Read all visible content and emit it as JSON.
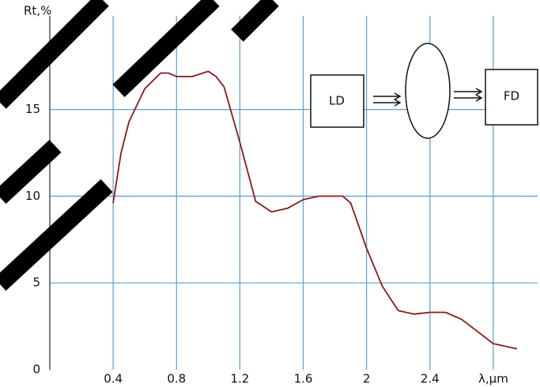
{
  "chart_data": {
    "type": "line",
    "y_label": "Rt,%",
    "annotations": [
      "LD",
      "FD"
    ],
    "x": [
      0.4,
      0.45,
      0.5,
      0.6,
      0.7,
      0.75,
      0.8,
      0.9,
      1.0,
      1.05,
      1.1,
      1.2,
      1.3,
      1.4,
      1.5,
      1.6,
      1.7,
      1.85,
      1.9,
      2.0,
      2.1,
      2.2,
      2.3,
      2.4,
      2.5,
      2.6,
      2.7,
      2.8,
      2.95
    ],
    "values": [
      9.6,
      12.5,
      14.3,
      16.2,
      17.1,
      17.1,
      16.9,
      16.9,
      17.2,
      16.9,
      16.3,
      13.1,
      9.7,
      9.1,
      9.3,
      9.8,
      10,
      10,
      9.6,
      7,
      4.8,
      3.4,
      3.2,
      3.3,
      3.3,
      2.9,
      2.2,
      1.5,
      1.2
    ],
    "color": "#8b1a1a",
    "grid_color": "#5aa0d0",
    "xlim": [
      0,
      3.08
    ],
    "ylim": [
      0,
      20.4
    ],
    "xticks": [
      0.4,
      0.8,
      1.2,
      1.6,
      2.0,
      2.4,
      {
        "value": 2.8,
        "label": "λ,μm"
      }
    ],
    "yticks": [
      0,
      5,
      10,
      15
    ],
    "grid": true
  }
}
